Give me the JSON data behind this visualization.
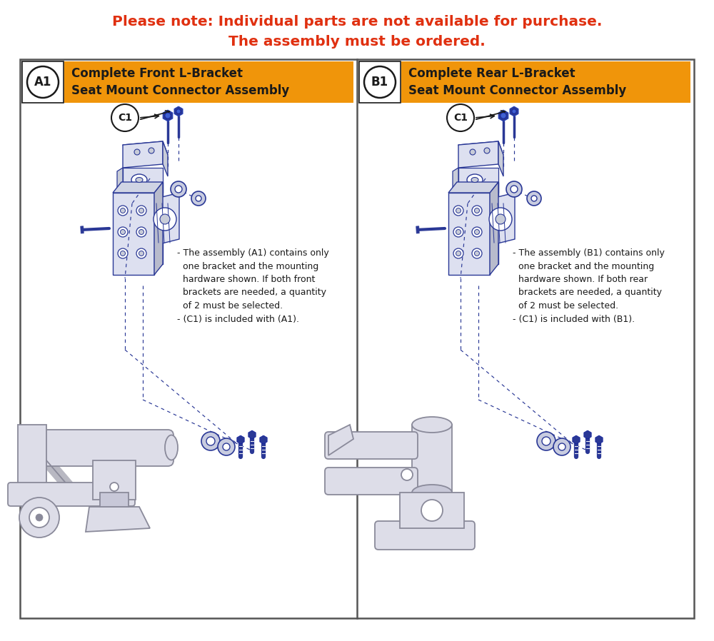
{
  "title_line1": "Please note: Individual parts are not available for purchase.",
  "title_line2": "The assembly must be ordered.",
  "title_color": "#e03010",
  "title_fontsize": 14.5,
  "background_color": "#ffffff",
  "border_color": "#444444",
  "orange_color": "#f0950a",
  "dark_text": "#1a1a1a",
  "blue_color": "#2a3896",
  "gray_line": "#8a8a8a",
  "gray_fill": "#e8eaf0",
  "gray_fill2": "#d8dae8",
  "label_A": "A1",
  "label_B": "B1",
  "label_C": "C1",
  "title_A": "Complete Front L-Bracket\nSeat Mount Connector Assembly",
  "title_B": "Complete Rear L-Bracket\nSeat Mount Connector Assembly",
  "note_A": "- The assembly (A1) contains only\n  one bracket and the mounting\n  hardware shown. If both front\n  brackets are needed, a quantity\n  of 2 must be selected.\n- (C1) is included with (A1).",
  "note_B": "- The assembly (B1) contains only\n  one bracket and the mounting\n  hardware shown. If both rear\n  brackets are needed, a quantity\n  of 2 must be selected.\n- (C1) is included with (B1)."
}
